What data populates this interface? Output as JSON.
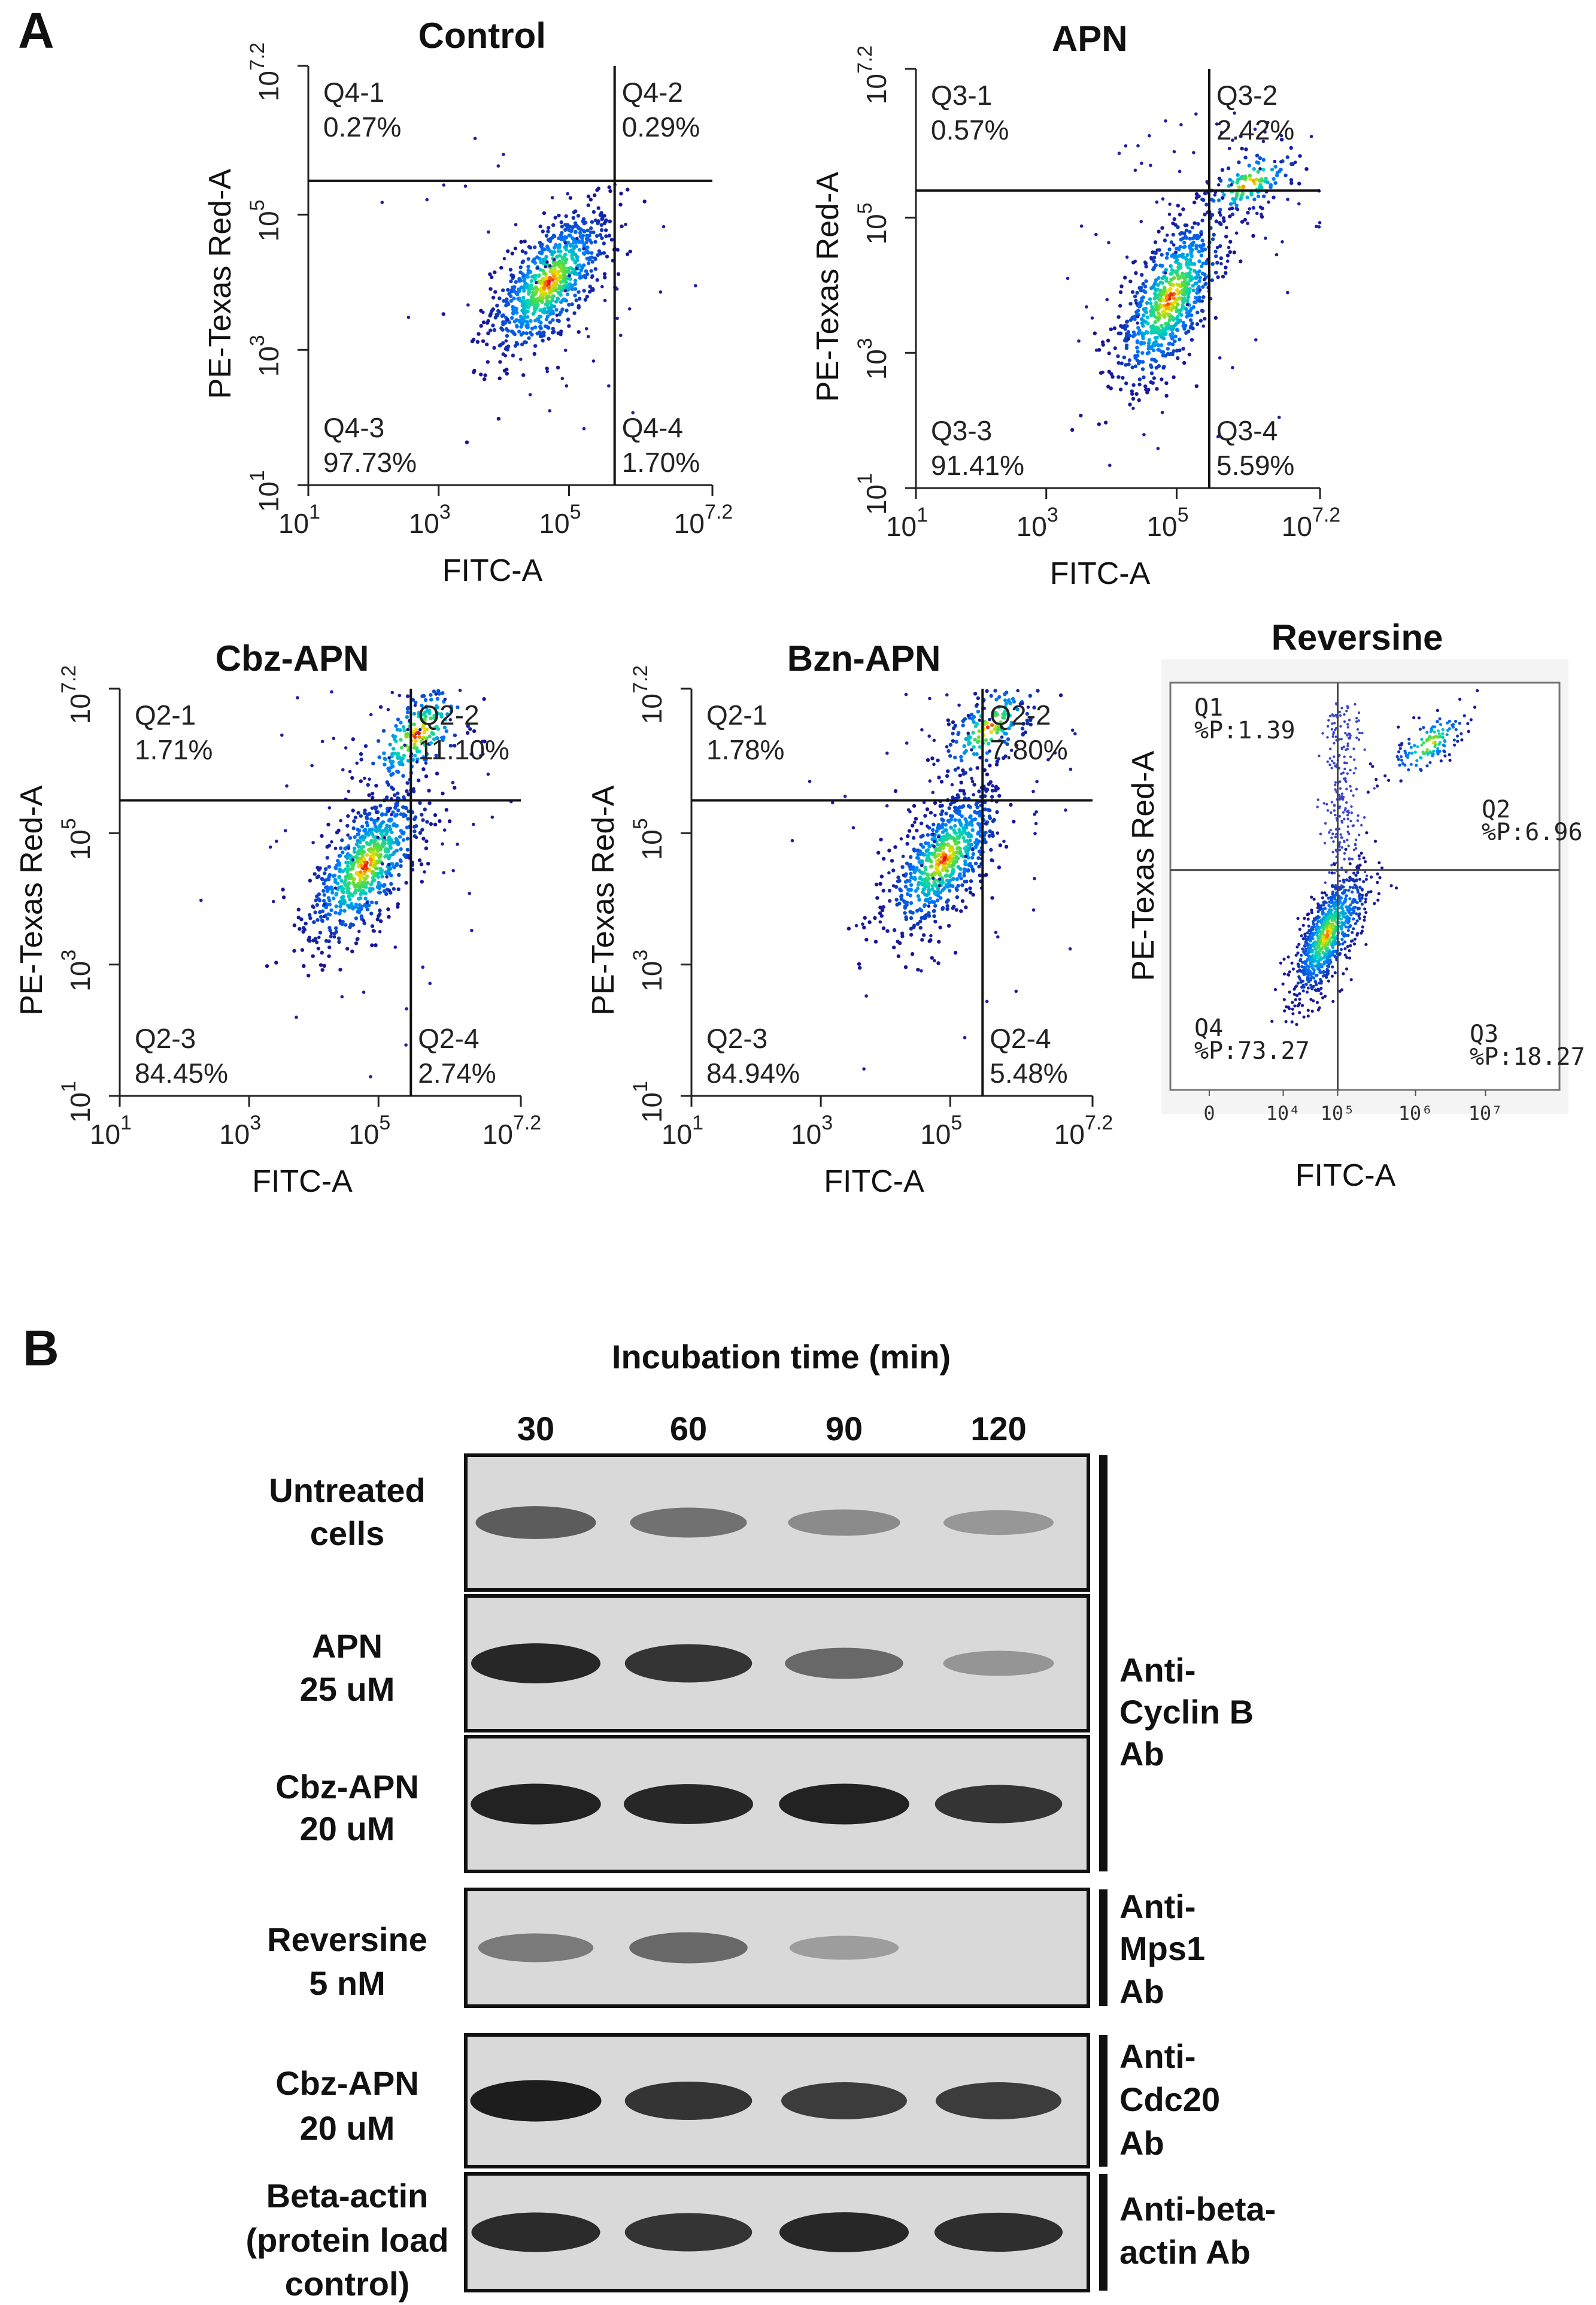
{
  "figure": {
    "panel_a_letter": "A",
    "panel_b_letter": "B"
  },
  "chart_data": [
    {
      "type": "scatter",
      "title": "Control",
      "xlabel": "FITC-A",
      "ylabel": "PE-Texas Red-A",
      "x_scale": "log10",
      "y_scale": "log10",
      "xlim": [
        1,
        7.2
      ],
      "ylim": [
        1,
        7.2
      ],
      "tick_bases": [
        "10",
        "10",
        "10",
        "10"
      ],
      "tick_exponents": [
        "1",
        "3",
        "5",
        "7.2"
      ],
      "gate_x": 5.7,
      "gate_y": 5.5,
      "quadrants": [
        {
          "name": "Q4-1",
          "value": "0.27%",
          "position": "top-left"
        },
        {
          "name": "Q4-2",
          "value": "0.29%",
          "position": "top-right"
        },
        {
          "name": "Q4-3",
          "value": "97.73%",
          "position": "bottom-left"
        },
        {
          "name": "Q4-4",
          "value": "1.70%",
          "position": "bottom-right"
        }
      ],
      "populations": [
        {
          "cx": 4.7,
          "cy": 4.0,
          "sx": 0.42,
          "sy": 0.5,
          "count": 800
        }
      ]
    },
    {
      "type": "scatter",
      "title": "APN",
      "xlabel": "FITC-A",
      "ylabel": "PE-Texas Red-A",
      "x_scale": "log10",
      "y_scale": "log10",
      "xlim": [
        1,
        7.2
      ],
      "ylim": [
        1,
        7.2
      ],
      "tick_bases": [
        "10",
        "10",
        "10",
        "10"
      ],
      "tick_exponents": [
        "1",
        "3",
        "5",
        "7.2"
      ],
      "gate_x": 5.5,
      "gate_y": 5.4,
      "quadrants": [
        {
          "name": "Q3-1",
          "value": "0.57%",
          "position": "top-left"
        },
        {
          "name": "Q3-2",
          "value": "2.42%",
          "position": "top-right"
        },
        {
          "name": "Q3-3",
          "value": "91.41%",
          "position": "bottom-left"
        },
        {
          "name": "Q3-4",
          "value": "5.59%",
          "position": "bottom-right"
        }
      ],
      "populations": [
        {
          "cx": 4.9,
          "cy": 3.8,
          "sx": 0.38,
          "sy": 0.6,
          "count": 700
        },
        {
          "cx": 6.1,
          "cy": 5.5,
          "sx": 0.35,
          "sy": 0.25,
          "count": 120
        }
      ]
    },
    {
      "type": "scatter",
      "title": "Cbz-APN",
      "xlabel": "FITC-A",
      "ylabel": "PE-Texas Red-A",
      "x_scale": "log10",
      "y_scale": "log10",
      "xlim": [
        1,
        7.2
      ],
      "ylim": [
        1,
        7.2
      ],
      "tick_bases": [
        "10",
        "10",
        "10",
        "10"
      ],
      "tick_exponents": [
        "1",
        "3",
        "5",
        "7.2"
      ],
      "gate_x": 5.5,
      "gate_y": 5.5,
      "quadrants": [
        {
          "name": "Q2-1",
          "value": "1.71%",
          "position": "top-left"
        },
        {
          "name": "Q2-2",
          "value": "11.10%",
          "position": "top-right"
        },
        {
          "name": "Q2-3",
          "value": "84.45%",
          "position": "bottom-left"
        },
        {
          "name": "Q2-4",
          "value": "2.74%",
          "position": "bottom-right"
        }
      ],
      "populations": [
        {
          "cx": 4.8,
          "cy": 4.5,
          "sx": 0.42,
          "sy": 0.55,
          "count": 700
        },
        {
          "cx": 5.6,
          "cy": 6.5,
          "sx": 0.4,
          "sy": 0.4,
          "count": 200
        }
      ]
    },
    {
      "type": "scatter",
      "title": "Bzn-APN",
      "xlabel": "FITC-A",
      "ylabel": "PE-Texas Red-A",
      "x_scale": "log10",
      "y_scale": "log10",
      "xlim": [
        1,
        7.2
      ],
      "ylim": [
        1,
        7.2
      ],
      "tick_bases": [
        "10",
        "10",
        "10",
        "10"
      ],
      "tick_exponents": [
        "1",
        "3",
        "5",
        "7.2"
      ],
      "gate_x": 5.5,
      "gate_y": 5.5,
      "quadrants": [
        {
          "name": "Q2-1",
          "value": "1.78%",
          "position": "top-left"
        },
        {
          "name": "Q2-2",
          "value": "7.80%",
          "position": "top-right"
        },
        {
          "name": "Q2-3",
          "value": "84.94%",
          "position": "bottom-left"
        },
        {
          "name": "Q2-4",
          "value": "5.48%",
          "position": "bottom-right"
        }
      ],
      "populations": [
        {
          "cx": 4.9,
          "cy": 4.6,
          "sx": 0.4,
          "sy": 0.5,
          "count": 700
        },
        {
          "cx": 5.6,
          "cy": 6.6,
          "sx": 0.35,
          "sy": 0.35,
          "count": 160
        }
      ]
    },
    {
      "type": "scatter",
      "title": "Reversine",
      "xlabel": "FITC-A",
      "ylabel": "PE-Texas Red-A",
      "tick_labels": [
        "0",
        "10⁴",
        "10⁵",
        "10⁶",
        "10⁷"
      ],
      "quadrants": [
        {
          "name": "Q1",
          "value": "%P:1.39",
          "position": "top-left"
        },
        {
          "name": "Q2",
          "value": "%P:6.96",
          "position": "top-right"
        },
        {
          "name": "Q4",
          "value": "%P:73.27",
          "position": "bottom-left"
        },
        {
          "name": "Q3",
          "value": "%P:18.27",
          "position": "bottom-right"
        }
      ],
      "populations": [
        {
          "cx": 4.8,
          "cy": 0.38,
          "sx": 0.28,
          "sy": 0.07,
          "count": 900
        },
        {
          "cx": 6.2,
          "cy": 0.85,
          "sx": 0.25,
          "sy": 0.04,
          "count": 140
        }
      ]
    }
  ],
  "western_blot": {
    "header": "Incubation time (min)",
    "timepoints": [
      "30",
      "60",
      "90",
      "120"
    ],
    "rows": [
      {
        "label": [
          "Untreated",
          "cells"
        ],
        "intensity": [
          0.62,
          0.5,
          0.35,
          0.28
        ]
      },
      {
        "label": [
          "APN",
          "25 uM"
        ],
        "intensity": [
          0.92,
          0.85,
          0.55,
          0.3
        ]
      },
      {
        "label": [
          "Cbz-APN",
          "20 uM"
        ],
        "intensity": [
          0.95,
          0.92,
          0.95,
          0.85
        ]
      },
      {
        "label": [
          "Reversine",
          "5 nM"
        ],
        "intensity": [
          0.45,
          0.55,
          0.25,
          0.0
        ]
      },
      {
        "label": [
          "Cbz-APN",
          "20 uM"
        ],
        "intensity": [
          0.98,
          0.85,
          0.8,
          0.8
        ]
      },
      {
        "label": [
          "Beta-actin",
          "(protein load",
          "control)"
        ],
        "intensity": [
          0.9,
          0.85,
          0.92,
          0.88
        ]
      }
    ],
    "antibodies": [
      {
        "label": [
          "Anti-",
          "Cyclin B",
          "Ab"
        ]
      },
      {
        "label": [
          "Anti-",
          "Mps1",
          "Ab"
        ]
      },
      {
        "label": [
          "Anti-",
          "Cdc20",
          "Ab"
        ]
      },
      {
        "label": [
          "Anti-beta-",
          "actin Ab"
        ]
      }
    ]
  }
}
